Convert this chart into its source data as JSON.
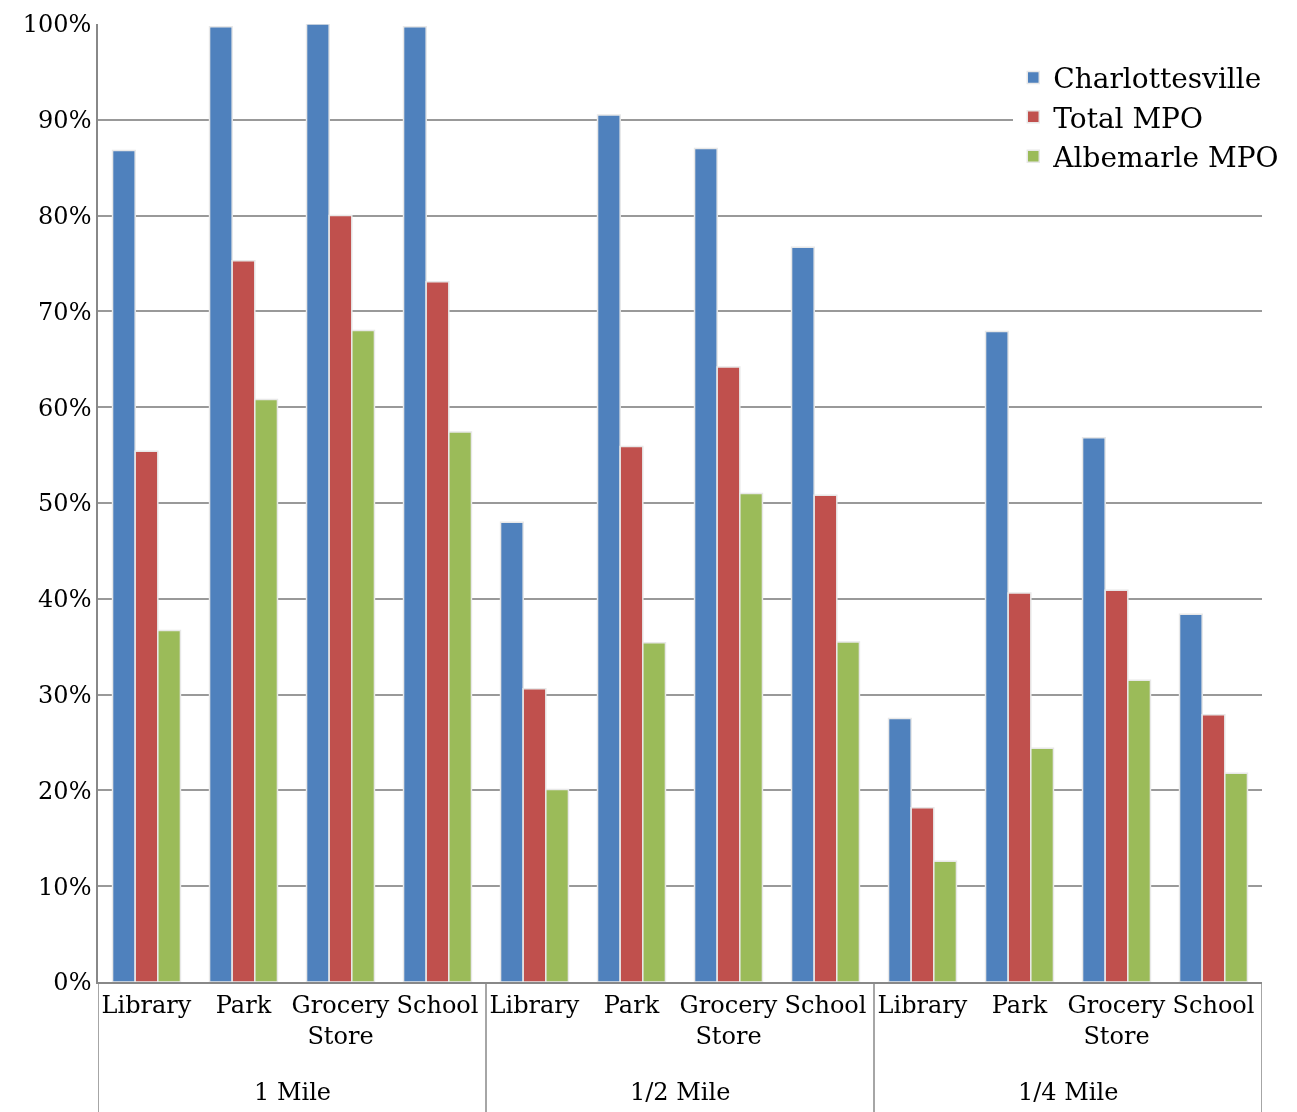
{
  "chart_data": {
    "type": "bar",
    "categories": [
      "Library",
      "Park",
      "Grocery Store",
      "School",
      "Library",
      "Park",
      "Grocery Store",
      "School",
      "Library",
      "Park",
      "Grocery Store",
      "School"
    ],
    "series": [
      {
        "name": "Charlottesville",
        "color": "#4f81bd",
        "values": [
          86.8,
          99.7,
          100,
          99.7,
          48,
          90.5,
          87,
          76.7,
          27.5,
          67.9,
          56.8,
          38.4
        ]
      },
      {
        "name": "Total MPO",
        "color": "#c0504d",
        "values": [
          55.4,
          75.3,
          80,
          73.1,
          30.6,
          55.9,
          64.2,
          50.8,
          18.2,
          40.6,
          40.9,
          27.9
        ]
      },
      {
        "name": "Albemarle MPO",
        "color": "#9bbb59",
        "values": [
          36.7,
          60.8,
          68,
          57.4,
          20.1,
          35.4,
          51,
          35.5,
          12.6,
          24.4,
          31.5,
          21.8
        ]
      }
    ],
    "annotations": [
      "1 Mile",
      "1/2 Mile",
      "1/4 Mile"
    ],
    "ylim": [
      0,
      100
    ],
    "yticks": [
      {
        "value": 0,
        "label": "0%"
      },
      {
        "value": 10,
        "label": "10%"
      },
      {
        "value": 20,
        "label": "20%"
      },
      {
        "value": 30,
        "label": "30%"
      },
      {
        "value": 40,
        "label": "40%"
      },
      {
        "value": 50,
        "label": "50%"
      },
      {
        "value": 60,
        "label": "60%"
      },
      {
        "value": 70,
        "label": "70%"
      },
      {
        "value": 80,
        "label": "80%"
      },
      {
        "value": 90,
        "label": "90%"
      },
      {
        "value": 100,
        "label": "100%"
      }
    ],
    "grid": "y",
    "legend": "top right"
  }
}
